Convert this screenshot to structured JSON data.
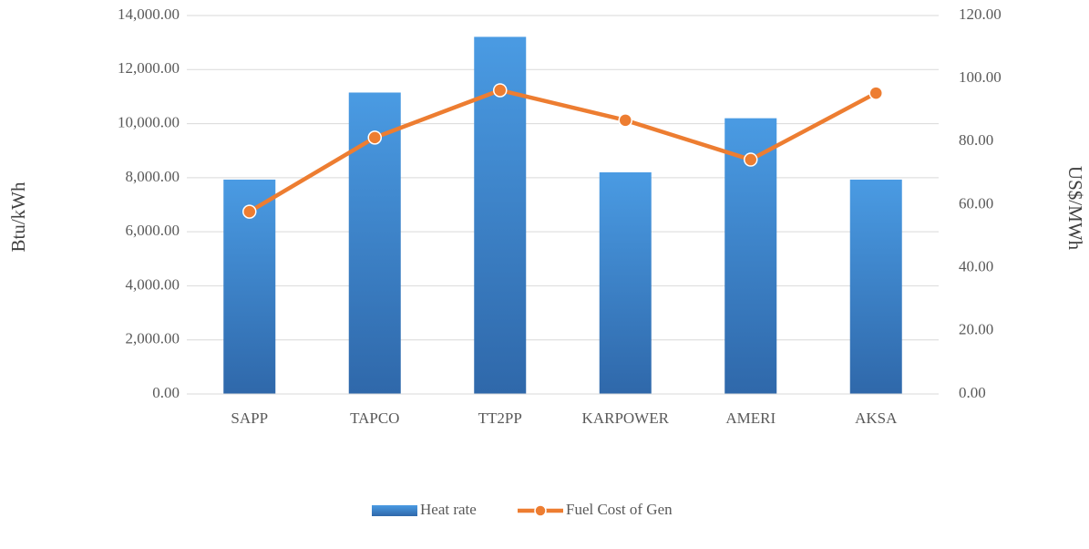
{
  "chart_data": {
    "type": "bar-line",
    "categories": [
      "SAPP",
      "TAPCO",
      "TT2PP",
      "KARPOWER",
      "AMERI",
      "AKSA"
    ],
    "y_label": "Btu/kWh",
    "y2_label": "US$/MWh",
    "series": [
      {
        "name": "Heat rate",
        "color": "#3f88d6",
        "values": [
          7930,
          11150,
          13210,
          8200,
          10200,
          7930
        ]
      },
      {
        "name": "Fuel Cost of Gen",
        "color": "#ed7d31",
        "axis": "y2",
        "values": [
          57.8,
          81.3,
          96.3,
          86.8,
          74.3,
          95.4
        ]
      }
    ],
    "ylim": [
      0,
      14000
    ],
    "yticks": [
      {
        "value": 0,
        "label": "0.00"
      },
      {
        "value": 2000,
        "label": "2,000.00"
      },
      {
        "value": 4000,
        "label": "4,000.00"
      },
      {
        "value": 6000,
        "label": "6,000.00"
      },
      {
        "value": 8000,
        "label": "8,000.00"
      },
      {
        "value": 10000,
        "label": "10,000.00"
      },
      {
        "value": 12000,
        "label": "12,000.00"
      },
      {
        "value": 14000,
        "label": "14,000.00"
      }
    ],
    "y2lim": [
      0,
      120
    ],
    "y2ticks": [
      {
        "value": 0,
        "label": "0.00"
      },
      {
        "value": 20,
        "label": "20.00"
      },
      {
        "value": 40,
        "label": "40.00"
      },
      {
        "value": 60,
        "label": "60.00"
      },
      {
        "value": 80,
        "label": "80.00"
      },
      {
        "value": 100,
        "label": "100.00"
      },
      {
        "value": 120,
        "label": "120.00"
      }
    ],
    "grid": true,
    "legend": "bottom"
  }
}
